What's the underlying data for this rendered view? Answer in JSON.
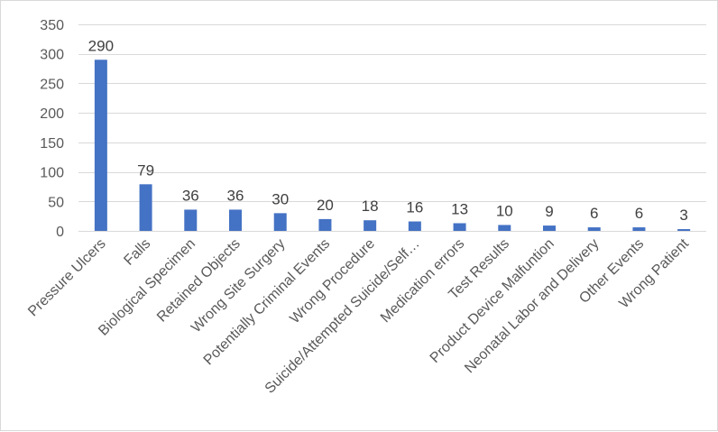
{
  "chart_data": {
    "type": "bar",
    "title": "",
    "xlabel": "",
    "ylabel": "",
    "categories": [
      "Pressure Ulcers",
      "Falls",
      "Biological Specimen",
      "Retained Objects",
      "Wrong Site Surgery",
      "Potentially Criminal Events",
      "Wrong Procedure",
      "Suicide/Attempted Suicide/Self…",
      "Medication errors",
      "Test Results",
      "Product Device Malfuntion",
      "Neonatal Labor and Delivery",
      "Other Events",
      "Wrong Patient"
    ],
    "values": [
      290,
      79,
      36,
      36,
      30,
      20,
      18,
      16,
      13,
      10,
      9,
      6,
      6,
      3
    ],
    "ylim": [
      0,
      350
    ],
    "yticks": [
      0,
      50,
      100,
      150,
      200,
      250,
      300,
      350
    ],
    "grid": true,
    "legend": "none",
    "bar_color": "#4472c4"
  }
}
